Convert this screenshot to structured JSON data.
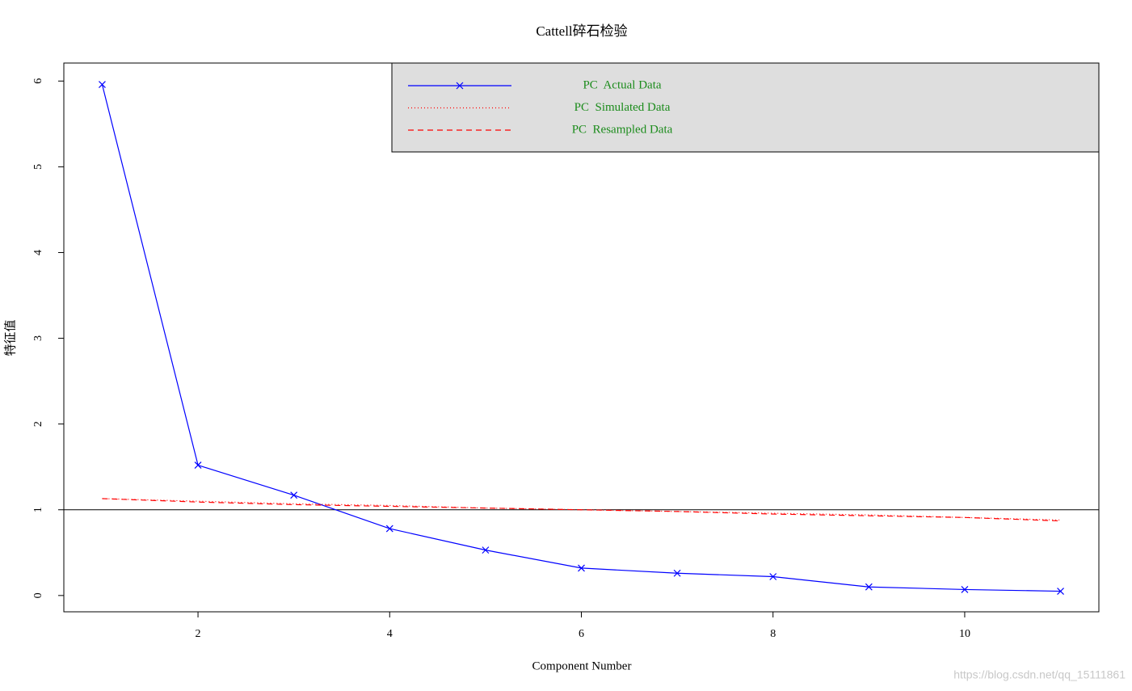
{
  "chart_data": {
    "type": "line",
    "title": "Cattell碎石检验",
    "xlabel": "Component Number",
    "ylabel": "特征值",
    "x": [
      1,
      2,
      3,
      4,
      5,
      6,
      7,
      8,
      9,
      10,
      11
    ],
    "series": [
      {
        "name": "PC  Actual Data",
        "color": "#0000ff",
        "linestyle": "solid",
        "marker": "x",
        "values": [
          5.96,
          1.52,
          1.17,
          0.78,
          0.53,
          0.32,
          0.26,
          0.22,
          0.1,
          0.07,
          0.05
        ]
      },
      {
        "name": "PC  Simulated Data",
        "color": "#ff0000",
        "linestyle": "dotted",
        "marker": null,
        "values": [
          1.13,
          1.1,
          1.07,
          1.05,
          1.02,
          1.0,
          0.98,
          0.96,
          0.94,
          0.91,
          0.88
        ]
      },
      {
        "name": "PC  Resampled Data",
        "color": "#ff0000",
        "linestyle": "dashed",
        "marker": null,
        "values": [
          1.13,
          1.09,
          1.06,
          1.04,
          1.02,
          1.0,
          0.98,
          0.95,
          0.93,
          0.91,
          0.87
        ]
      }
    ],
    "hline": 1,
    "xlim": [
      0.6,
      11.4
    ],
    "ylim": [
      -0.19,
      6.21
    ],
    "xticks": [
      2,
      4,
      6,
      8,
      10
    ],
    "yticks": [
      0,
      1,
      2,
      3,
      4,
      5,
      6
    ],
    "legend": "topright",
    "legend_background": "#dedede",
    "watermark": "https://blog.csdn.net/qq_15111861"
  }
}
